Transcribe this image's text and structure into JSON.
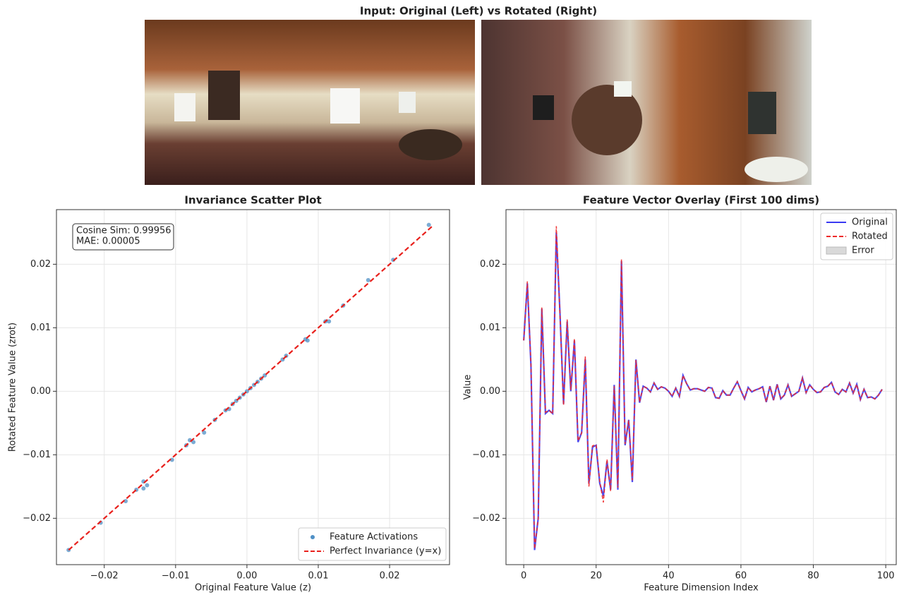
{
  "images": {
    "title": "Input: Original (Left) vs Rotated (Right)"
  },
  "chart_data": [
    {
      "type": "scatter",
      "title": "Invariance Scatter Plot",
      "x_label": "Original Feature Value (z)",
      "y_label": "Rotated Feature Value (zrot)",
      "annotation": [
        "Cosine Sim: 0.99956",
        "MAE: 0.00005"
      ],
      "series": [
        {
          "name": "Feature Activations",
          "color": "#4f90c6",
          "x": [
            0.0255,
            0.0205,
            0.017,
            0.0135,
            0.011,
            0.0115,
            0.0082,
            0.0085,
            0.005,
            0.0055,
            0.0025,
            0.002,
            0.0015,
            0.001,
            0.0005,
            0,
            -0.0005,
            -0.001,
            -0.0015,
            -0.002,
            -0.0025,
            -0.003,
            -0.0045,
            -0.006,
            -0.0075,
            -0.008,
            -0.0085,
            -0.0105,
            -0.014,
            -0.0145,
            -0.0145,
            -0.0155,
            -0.017,
            -0.0205,
            -0.025
          ],
          "y": [
            0.0262,
            0.0207,
            0.0175,
            0.0135,
            0.011,
            0.011,
            0.0082,
            0.008,
            0.005,
            0.0056,
            0.0025,
            0.002,
            0.0015,
            0.001,
            0.0005,
            0,
            -0.0005,
            -0.001,
            -0.0015,
            -0.002,
            -0.0028,
            -0.003,
            -0.0045,
            -0.0065,
            -0.008,
            -0.0077,
            -0.0085,
            -0.0108,
            -0.0148,
            -0.0142,
            -0.0153,
            -0.0155,
            -0.0173,
            -0.0207,
            -0.025
          ]
        },
        {
          "name": "Perfect Invariance (y=x)",
          "type": "line",
          "dashed": true,
          "color": "#e8201c",
          "x": [
            -0.025,
            0.026
          ],
          "y": [
            -0.025,
            0.026
          ]
        }
      ],
      "xlim": [
        -0.0267,
        0.0284
      ],
      "ylim": [
        -0.0273,
        0.0286
      ],
      "xticks": [
        {
          "value": -0.02,
          "label": "−0.02"
        },
        {
          "value": -0.01,
          "label": "−0.01"
        },
        {
          "value": 0,
          "label": "0.00"
        },
        0.01,
        0.02
      ],
      "yticks": [
        {
          "value": -0.02,
          "label": "−0.02"
        },
        {
          "value": -0.01,
          "label": "−0.01"
        },
        {
          "value": 0,
          "label": "0.00"
        },
        0.01,
        0.02
      ],
      "grid": true,
      "legend": "lower right"
    },
    {
      "type": "line",
      "title": "Feature Vector Overlay (First 100 dims)",
      "x_label": "Feature Dimension Index",
      "y_label": "Value",
      "x": [
        0,
        1,
        2,
        3,
        4,
        5,
        6,
        7,
        8,
        9,
        10,
        11,
        12,
        13,
        14,
        15,
        16,
        17,
        18,
        19,
        20,
        21,
        22,
        23,
        24,
        25,
        26,
        27,
        28,
        29,
        30,
        31,
        32,
        33,
        34,
        35,
        36,
        37,
        38,
        39,
        40,
        41,
        42,
        43,
        44,
        45,
        46,
        47,
        48,
        49,
        50,
        51,
        52,
        53,
        54,
        55,
        56,
        57,
        58,
        59,
        60,
        61,
        62,
        63,
        64,
        65,
        66,
        67,
        68,
        69,
        70,
        71,
        72,
        73,
        74,
        75,
        76,
        77,
        78,
        79,
        80,
        81,
        82,
        83,
        84,
        85,
        86,
        87,
        88,
        89,
        90,
        91,
        92,
        93,
        94,
        95,
        96,
        97,
        98,
        99
      ],
      "series": [
        {
          "name": "Original",
          "color": "#3a3af2",
          "values": [
            0.008,
            0.017,
            0.004,
            -0.025,
            -0.02,
            0.013,
            -0.0035,
            -0.003,
            -0.0035,
            0.025,
            0.0125,
            -0.002,
            0.011,
            0,
            0.008,
            -0.008,
            -0.0065,
            0.005,
            -0.0145,
            -0.0088,
            -0.0085,
            -0.0145,
            -0.0165,
            -0.011,
            -0.0155,
            0.001,
            -0.0155,
            0.0205,
            -0.0085,
            -0.0045,
            -0.0143,
            0.005,
            -0.0018,
            0.0008,
            0.0005,
            -0.0001,
            0.0013,
            0.0003,
            0.0007,
            0.0005,
            0,
            -0.0008,
            0.0005,
            -0.0008,
            0.0025,
            0.0012,
            0.0002,
            0.0004,
            0.0004,
            0.0002,
            0,
            0.0006,
            0.0005,
            -0.001,
            -0.0011,
            0.0001,
            -0.0006,
            -0.0006,
            0.0005,
            0.0015,
            0.0001,
            -0.0012,
            0.0006,
            -0.0001,
            0.0002,
            0.0004,
            0.0007,
            -0.0017,
            0.0008,
            -0.0014,
            0.0011,
            -0.0012,
            -0.0006,
            0.001,
            -0.0008,
            -0.0004,
            0,
            0.0021,
            -0.0002,
            0.001,
            0.0003,
            -0.0002,
            -0.0001,
            0.0006,
            0.0008,
            0.0014,
            -0.0001,
            -0.0005,
            0.0003,
            -0.0001,
            0.0013,
            -0.0003,
            0.0011,
            -0.0013,
            0.0003,
            -0.001,
            -0.0009,
            -0.0012,
            -0.0006,
            0.0003
          ]
        },
        {
          "name": "Rotated",
          "color": "#ee2a2a",
          "dashed": true,
          "values": [
            0.008,
            0.0173,
            0.0042,
            -0.0248,
            -0.0202,
            0.0132,
            -0.0033,
            -0.003,
            -0.0036,
            0.026,
            0.0122,
            -0.0022,
            0.0113,
            0.0002,
            0.0083,
            -0.0078,
            -0.0066,
            0.0055,
            -0.015,
            -0.0086,
            -0.0084,
            -0.0142,
            -0.0175,
            -0.0107,
            -0.0157,
            0.0008,
            -0.0152,
            0.0208,
            -0.0083,
            -0.0046,
            -0.014,
            0.0049,
            -0.0017,
            0.0008,
            0.0005,
            -0.0001,
            0.0013,
            0.0003,
            0.0007,
            0.0005,
            0,
            -0.0008,
            0.0005,
            -0.0008,
            0.0025,
            0.0012,
            0.0002,
            0.0004,
            0.0004,
            0.0002,
            0,
            0.0006,
            0.0005,
            -0.001,
            -0.0011,
            0.0001,
            -0.0006,
            -0.0006,
            0.0005,
            0.0015,
            0.0001,
            -0.0012,
            0.0006,
            -0.0001,
            0.0002,
            0.0004,
            0.0007,
            -0.0017,
            0.0008,
            -0.0014,
            0.0011,
            -0.0012,
            -0.0006,
            0.001,
            -0.0008,
            -0.0004,
            0,
            0.0021,
            -0.0002,
            0.001,
            0.0003,
            -0.0002,
            -0.0001,
            0.0006,
            0.0008,
            0.0014,
            -0.0001,
            -0.0005,
            0.0003,
            -0.0001,
            0.0013,
            -0.0003,
            0.0011,
            -0.0013,
            0.0003,
            -0.001,
            -0.0009,
            -0.0012,
            -0.0006,
            0.0003
          ]
        },
        {
          "name": "Error",
          "type": "fill",
          "color": "#d9d9d9"
        }
      ],
      "xlim": [
        -4.9,
        102.9
      ],
      "ylim": [
        -0.0273,
        0.0286
      ],
      "xticks": [
        0,
        20,
        40,
        60,
        80,
        100
      ],
      "yticks": [
        {
          "value": -0.02,
          "label": "−0.02"
        },
        {
          "value": -0.01,
          "label": "−0.01"
        },
        {
          "value": 0,
          "label": "0.00"
        },
        0.01,
        0.02
      ],
      "grid": true,
      "legend": "upper right"
    }
  ]
}
